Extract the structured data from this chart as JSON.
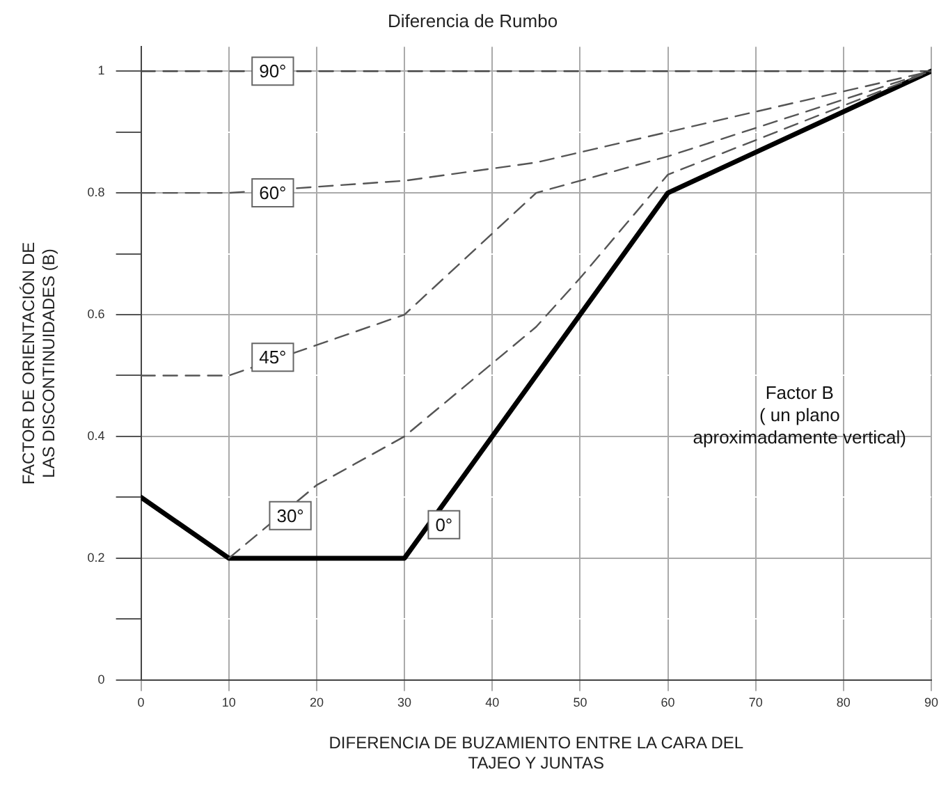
{
  "chart_data": {
    "type": "line",
    "title": "Diferencia de Rumbo",
    "xlabel": "DIFERENCIA DE BUZAMIENTO ENTRE LA CARA DEL\nTAJEO Y JUNTAS",
    "ylabel": "FACTOR DE ORIENTACIÓN DE\nLAS DISCONTINUIDADES (B)",
    "xlim": [
      0,
      90
    ],
    "xticks": [
      0,
      10,
      20,
      30,
      40,
      50,
      60,
      70,
      80,
      90
    ],
    "ylim": [
      0,
      1.04
    ],
    "yticks": [
      0,
      {
        "value": 0.1,
        "label": null
      },
      {
        "value": 0.2,
        "label": "0.2"
      },
      {
        "value": 0.3,
        "label": null
      },
      {
        "value": 0.4,
        "label": "0.4"
      },
      {
        "value": 0.5,
        "label": null
      },
      {
        "value": 0.6,
        "label": "0.6"
      },
      {
        "value": 0.7,
        "label": null
      },
      {
        "value": 0.8,
        "label": "0.8"
      },
      {
        "value": 0.9,
        "label": null
      },
      1
    ],
    "grid": true,
    "legend": false,
    "marker": "none",
    "series": [
      {
        "name": "90°",
        "color": "#444444",
        "line_style": "dashed",
        "x": [
          0,
          90
        ],
        "values": [
          1,
          1
        ]
      },
      {
        "name": "60°",
        "color": "#555555",
        "line_style": "dashed",
        "x": [
          0,
          10,
          30,
          45,
          60,
          90
        ],
        "values": [
          0.8,
          0.8,
          0.82,
          0.85,
          0.9,
          1
        ]
      },
      {
        "name": "45°",
        "color": "#555555",
        "line_style": "dashed",
        "x": [
          0,
          10,
          30,
          45,
          60,
          90
        ],
        "values": [
          0.5,
          0.5,
          0.6,
          0.8,
          0.86,
          1
        ]
      },
      {
        "name": "30°",
        "color": "#555555",
        "line_style": "dashed",
        "x": [
          10,
          20,
          30,
          40,
          45,
          50,
          60,
          90
        ],
        "values": [
          0.2,
          0.32,
          0.4,
          0.52,
          0.58,
          0.66,
          0.83,
          1
        ]
      },
      {
        "name": "0°",
        "color": "#000000",
        "line_style": "solid",
        "x": [
          0,
          10,
          30,
          60,
          90
        ],
        "values": [
          0.3,
          0.2,
          0.2,
          0.8,
          1
        ]
      }
    ],
    "annotations": [
      "Factor B\n( un plano\naproximadamente vertical)"
    ]
  }
}
